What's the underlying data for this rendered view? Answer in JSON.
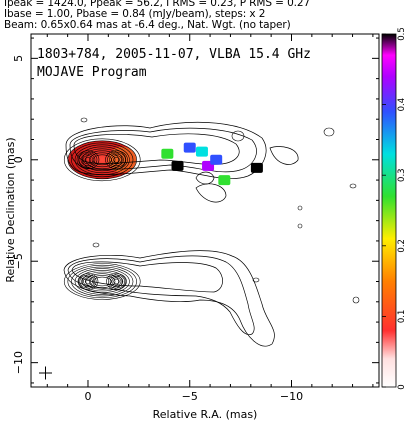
{
  "header": {
    "line1": "Ipeak = 1424.0, Ppeak = 56.2, I RMS = 0.23, P RMS = 0.27",
    "line2": "Ibase = 1.00, Pbase = 0.84 (mJy/beam), steps: x 2",
    "line3": "Beam: 0.65x0.64 mas at -6.4 deg., Nat. Wgt. (no taper)"
  },
  "plot_title": {
    "line1": "1803+784, 2005-11-07, VLBA 15.4 GHz",
    "line2": "MOJAVE Program"
  },
  "chart_data": {
    "type": "heatmap",
    "title": "1803+784, 2005-11-07, VLBA 15.4 GHz",
    "subtitle": "MOJAVE Program",
    "xlabel": "Relative R.A. (mas)",
    "ylabel": "Relative Declination (mas)",
    "xlim": [
      2.8,
      -14.3
    ],
    "ylim": [
      -11.2,
      6.2
    ],
    "x_ticks": [
      0,
      -5,
      -10
    ],
    "x_tick_labels": [
      "0",
      "−5",
      "−10"
    ],
    "y_ticks": [
      5,
      0,
      -5,
      -10
    ],
    "y_tick_labels": [
      "5",
      "0",
      "−5",
      "−10"
    ],
    "colorbar": {
      "min": 0,
      "max": 0.5,
      "ticks": [
        0,
        0.1,
        0.2,
        0.3,
        0.4,
        0.5
      ],
      "tick_labels": [
        "0",
        "0.1",
        "0.2",
        "0.3",
        "0.4",
        "0.5"
      ]
    },
    "upper_map": {
      "peaks": [
        {
          "ra": 0.0,
          "dec": 0.0
        },
        {
          "ra": -1.4,
          "dec": 0.0
        }
      ],
      "polarization_patches": [
        {
          "ra": -3.9,
          "dec": 0.3,
          "frac": 0.3
        },
        {
          "ra": -4.4,
          "dec": -0.3,
          "frac": 0.5
        },
        {
          "ra": -5.0,
          "dec": 0.6,
          "frac": 0.42
        },
        {
          "ra": -5.6,
          "dec": 0.4,
          "frac": 0.38
        },
        {
          "ra": -5.9,
          "dec": -0.3,
          "frac": 0.45
        },
        {
          "ra": -6.3,
          "dec": 0.0,
          "frac": 0.4
        },
        {
          "ra": -6.7,
          "dec": -1.0,
          "frac": 0.3
        },
        {
          "ra": -8.3,
          "dec": -0.4,
          "frac": 0.5
        }
      ]
    },
    "lower_map": {
      "peaks": [
        {
          "ra": 0.0,
          "dec": -6.0
        },
        {
          "ra": -1.4,
          "dec": -6.0
        }
      ]
    },
    "colors": {
      "contour": "#000000",
      "total_intensity_fill": "#e02020",
      "colorbar_low": "#ffffff",
      "colorbar_high": "#000000"
    }
  }
}
